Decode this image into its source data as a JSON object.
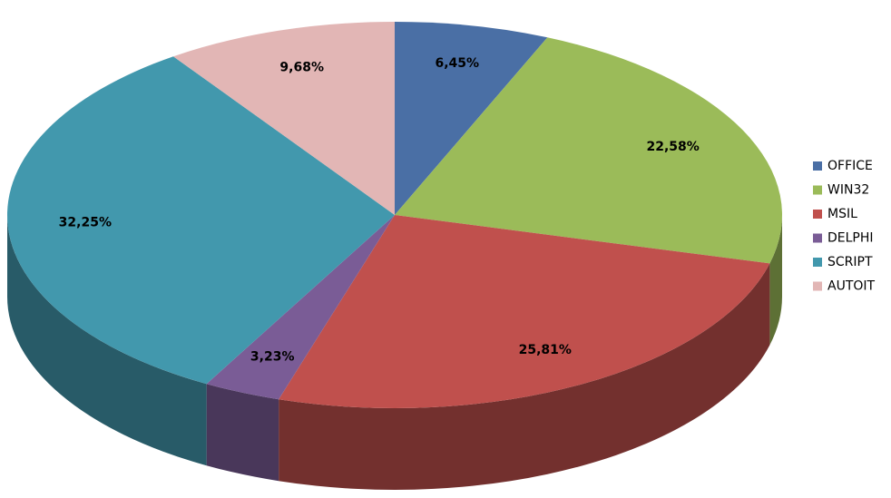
{
  "chart_data": {
    "type": "pie",
    "categories": [
      "OFFICE",
      "WIN32",
      "MSIL",
      "DELPHI",
      "SCRIPT",
      "AUTOIT"
    ],
    "values": [
      6.45,
      22.58,
      25.81,
      3.23,
      32.25,
      9.68
    ],
    "value_labels": [
      "6,45%",
      "22,58%",
      "25,81%",
      "3,23%",
      "32,25%",
      "9,68%"
    ],
    "colors": [
      "#4a6fa5",
      "#9bbb59",
      "#c0504d",
      "#7a5c96",
      "#4298ad",
      "#e2b6b5"
    ],
    "legend": "right"
  }
}
